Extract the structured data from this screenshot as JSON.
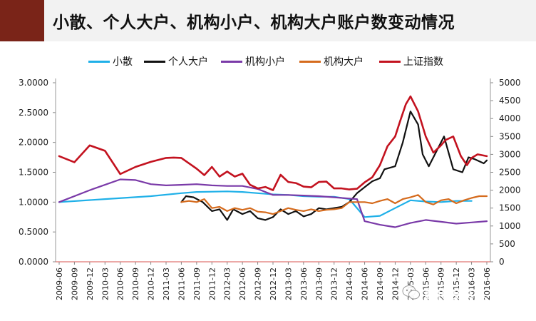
{
  "title": "小散、个人大户、机构小户、机构大户账户数变动情况",
  "colors": {
    "title_block": "#7a2418",
    "title_bar": "#f2f2f2"
  },
  "watermark": {
    "text": "量化投资人",
    "icon": "wechat-icon"
  },
  "chart_data": {
    "type": "line",
    "title": "小散、个人大户、机构小户、机构大户账户数变动情况",
    "legend_position": "top",
    "grid": false,
    "x_labels": [
      "2009-06",
      "2009-09",
      "2009-12",
      "2010-03",
      "2010-06",
      "2010-09",
      "2010-12",
      "2011-03",
      "2011-06",
      "2011-09",
      "2011-12",
      "2012-03",
      "2012-06",
      "2012-09",
      "2012-12",
      "2013-03",
      "2013-06",
      "2013-09",
      "2013-12",
      "2014-03",
      "2014-06",
      "2014-09",
      "2014-12",
      "2015-03",
      "2015-06",
      "2015-09",
      "2015-12",
      "2016-03",
      "2016-06"
    ],
    "y_left": {
      "min": 0,
      "max": 3,
      "step": 0.5,
      "tick_labels": [
        "0.0000",
        "0.5000",
        "1.0000",
        "1.5000",
        "2.0000",
        "2.5000",
        "3.0000"
      ]
    },
    "y_right": {
      "min": 0,
      "max": 5000,
      "step": 500,
      "tick_labels": [
        "0",
        "500",
        "1000",
        "1500",
        "2000",
        "2500",
        "3000",
        "3500",
        "4000",
        "4500",
        "5000"
      ]
    },
    "series": [
      {
        "name": "小散",
        "axis": "left",
        "color": "#1fb0e8",
        "x": [
          0,
          3,
          6,
          8,
          9,
          11,
          12,
          13,
          14,
          15,
          16,
          17,
          18,
          19,
          20,
          21,
          22,
          23,
          24,
          25,
          26,
          27
        ],
        "y": [
          1.0,
          1.05,
          1.1,
          1.15,
          1.17,
          1.18,
          1.17,
          1.15,
          1.13,
          1.12,
          1.1,
          1.09,
          1.09,
          1.05,
          0.75,
          0.77,
          0.9,
          1.03,
          1.01,
          1.0,
          1.02,
          1.02
        ]
      },
      {
        "name": "个人大户",
        "axis": "left",
        "color": "#111111",
        "x": [
          8,
          8.3,
          8.8,
          9.4,
          10,
          10.5,
          11,
          11.4,
          12,
          12.5,
          13,
          13.5,
          14,
          14.5,
          15,
          15.5,
          16,
          16.5,
          17,
          17.5,
          18,
          18.5,
          19,
          19.5,
          20,
          20.5,
          21,
          21.3,
          22,
          22.5,
          23,
          23.5,
          23.8,
          24.2,
          24.8,
          25.2,
          25.8,
          26.4,
          26.8,
          27.2,
          27.8,
          28
        ],
        "y": [
          1.0,
          1.1,
          1.08,
          1.0,
          0.85,
          0.88,
          0.7,
          0.88,
          0.8,
          0.85,
          0.73,
          0.7,
          0.75,
          0.88,
          0.8,
          0.85,
          0.76,
          0.8,
          0.9,
          0.88,
          0.9,
          0.92,
          1.0,
          1.15,
          1.25,
          1.35,
          1.4,
          1.55,
          1.6,
          2.0,
          2.52,
          2.3,
          1.8,
          1.6,
          1.9,
          2.1,
          1.55,
          1.5,
          1.75,
          1.72,
          1.65,
          1.7
        ]
      },
      {
        "name": "机构小户",
        "axis": "left",
        "color": "#7a3aa8",
        "x": [
          0,
          2,
          4,
          5,
          6,
          7,
          8,
          9,
          10,
          11,
          12,
          13,
          14,
          15,
          16,
          17,
          18,
          19,
          19.5,
          20,
          21,
          22,
          23,
          24,
          25,
          26,
          27,
          28
        ],
        "y": [
          1.0,
          1.2,
          1.38,
          1.37,
          1.3,
          1.28,
          1.29,
          1.3,
          1.28,
          1.27,
          1.27,
          1.22,
          1.12,
          1.12,
          1.11,
          1.1,
          1.08,
          1.06,
          1.05,
          0.68,
          0.62,
          0.58,
          0.65,
          0.7,
          0.67,
          0.64,
          0.66,
          0.68
        ]
      },
      {
        "name": "机构大户",
        "axis": "left",
        "color": "#d56b1d",
        "x": [
          8,
          8.5,
          9,
          9.5,
          10,
          10.5,
          11,
          11.5,
          12,
          12.5,
          13,
          13.5,
          14,
          14.5,
          15,
          15.5,
          16,
          16.5,
          17,
          17.5,
          18,
          18.5,
          19,
          19.5,
          20,
          20.5,
          21,
          21.5,
          22,
          22.5,
          23,
          23.5,
          24,
          24.5,
          25,
          25.5,
          26,
          26.5,
          27,
          27.5,
          28
        ],
        "y": [
          1.0,
          1.02,
          1.0,
          1.05,
          0.9,
          0.92,
          0.85,
          0.9,
          0.87,
          0.9,
          0.84,
          0.83,
          0.8,
          0.85,
          0.9,
          0.87,
          0.85,
          0.88,
          0.85,
          0.87,
          0.88,
          0.9,
          1.0,
          1.0,
          1.0,
          0.98,
          1.02,
          1.05,
          0.98,
          1.05,
          1.08,
          1.12,
          1.0,
          0.96,
          1.03,
          1.05,
          0.98,
          1.03,
          1.07,
          1.1,
          1.1
        ]
      },
      {
        "name": "上证指数",
        "axis": "right",
        "color": "#c3121f",
        "x": [
          0,
          1,
          2,
          3,
          4,
          5,
          6,
          7,
          7.5,
          8,
          8.5,
          9,
          9.5,
          10,
          10.5,
          11,
          11.5,
          12,
          12.5,
          13,
          13.5,
          14,
          14.5,
          15,
          15.5,
          16,
          16.5,
          17,
          17.5,
          18,
          18.5,
          19,
          19.5,
          20,
          20.5,
          21,
          21.5,
          22,
          22.3,
          22.7,
          23,
          23.5,
          24,
          24.5,
          25,
          25.3,
          25.8,
          26.3,
          26.7,
          27,
          27.4,
          28
        ],
        "y": [
          2950,
          2780,
          3250,
          3100,
          2450,
          2650,
          2790,
          2900,
          2910,
          2900,
          2750,
          2600,
          2420,
          2650,
          2380,
          2520,
          2380,
          2460,
          2150,
          2050,
          2090,
          2000,
          2430,
          2230,
          2200,
          2100,
          2080,
          2230,
          2240,
          2050,
          2050,
          2020,
          2040,
          2220,
          2360,
          2700,
          3230,
          3500,
          3900,
          4400,
          4620,
          4200,
          3500,
          3050,
          3250,
          3400,
          3500,
          2950,
          2700,
          2900,
          3000,
          2950
        ]
      }
    ]
  }
}
